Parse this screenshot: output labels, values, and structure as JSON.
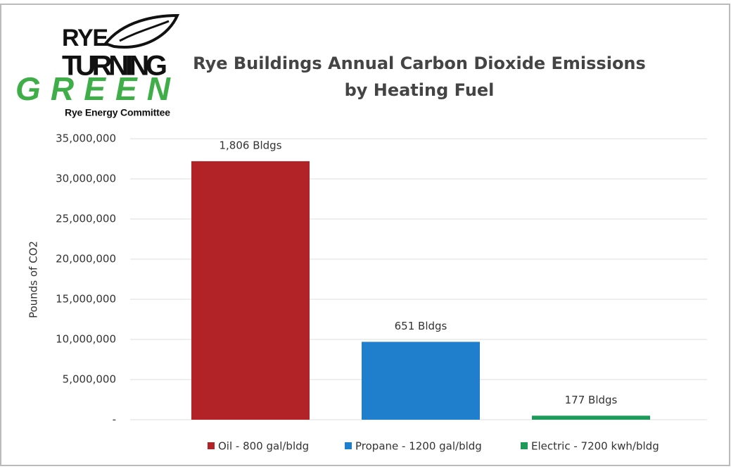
{
  "logo": {
    "line1": "RYE",
    "line2": "TURNING",
    "line3": "GREEN",
    "line4": "Rye Energy Committee"
  },
  "chart_data": {
    "type": "bar",
    "title": "Rye Buildings Annual Carbon Dioxide Emissions",
    "subtitle": "by Heating Fuel",
    "y_label": "Pounds of CO2",
    "ylim": [
      0,
      35000000
    ],
    "yticks": [
      {
        "value": 0,
        "label": "-"
      },
      {
        "value": 5000000,
        "label": "5,000,000"
      },
      {
        "value": 10000000,
        "label": "10,000,000"
      },
      {
        "value": 15000000,
        "label": "15,000,000"
      },
      {
        "value": 20000000,
        "label": "20,000,000"
      },
      {
        "value": 25000000,
        "label": "25,000,000"
      },
      {
        "value": 30000000,
        "label": "30,000,000"
      },
      {
        "value": 35000000,
        "label": "35,000,000"
      }
    ],
    "grid": true,
    "legend": "bottom",
    "series": [
      {
        "name": "Oil - 800 gal/bldg",
        "color": "#b22327",
        "values": [
          32200000
        ],
        "annotation": "1,806 Bldgs"
      },
      {
        "name": "Propane - 1200 gal/bldg",
        "color": "#1f7fcc",
        "values": [
          9700000
        ],
        "annotation": "651 Bldgs"
      },
      {
        "name": "Electric - 7200 kwh/bldg",
        "color": "#1e9a5a",
        "values": [
          500000
        ],
        "annotation": "177 Bldgs"
      }
    ]
  }
}
